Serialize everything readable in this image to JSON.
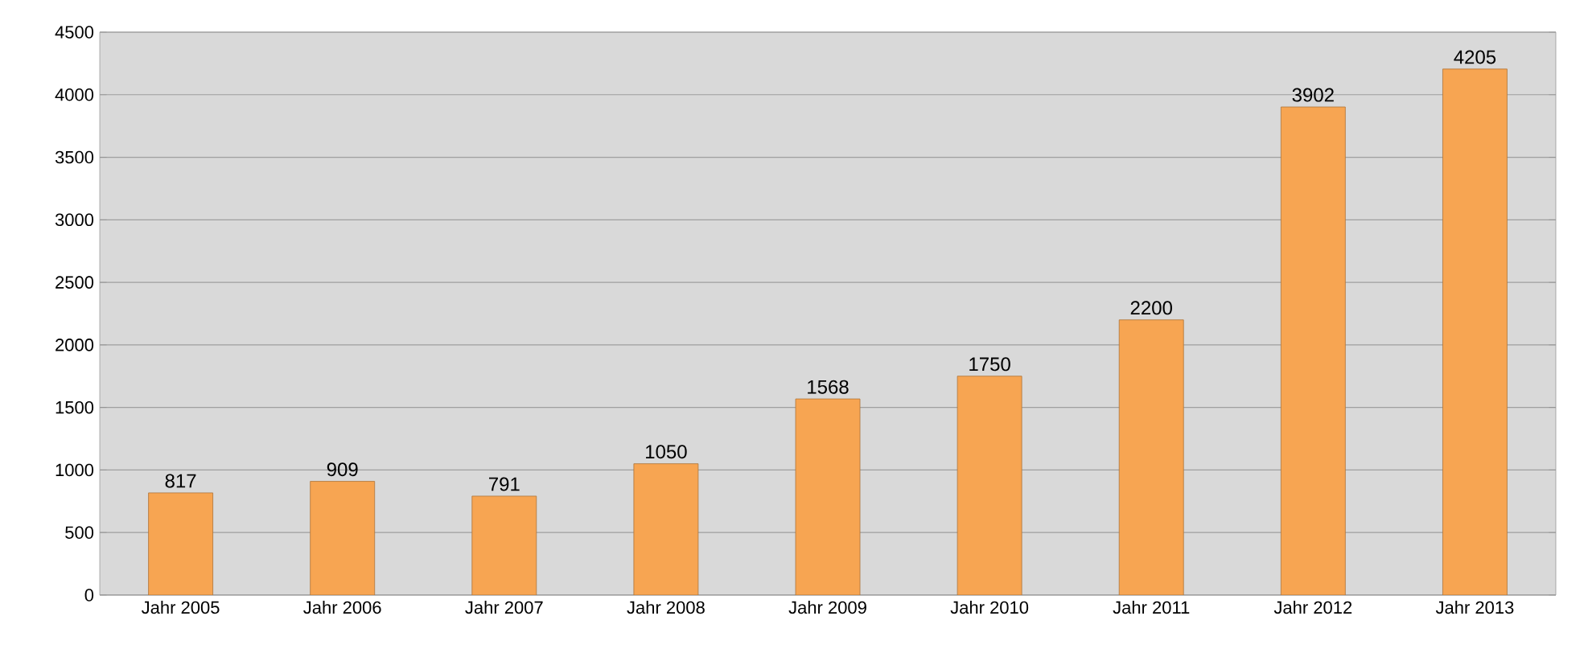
{
  "chart_data": {
    "type": "bar",
    "categories": [
      "Jahr 2005",
      "Jahr 2006",
      "Jahr 2007",
      "Jahr 2008",
      "Jahr 2009",
      "Jahr 2010",
      "Jahr 2011",
      "Jahr 2012",
      "Jahr 2013"
    ],
    "values": [
      817,
      909,
      791,
      1050,
      1568,
      1750,
      2200,
      3902,
      4205
    ],
    "color": "#f7a552",
    "ylim": [
      0,
      4500
    ],
    "yticks": [
      0,
      500,
      1000,
      1500,
      2000,
      2500,
      3000,
      3500,
      4000,
      4500
    ],
    "grid": "y",
    "data_labels": true
  }
}
